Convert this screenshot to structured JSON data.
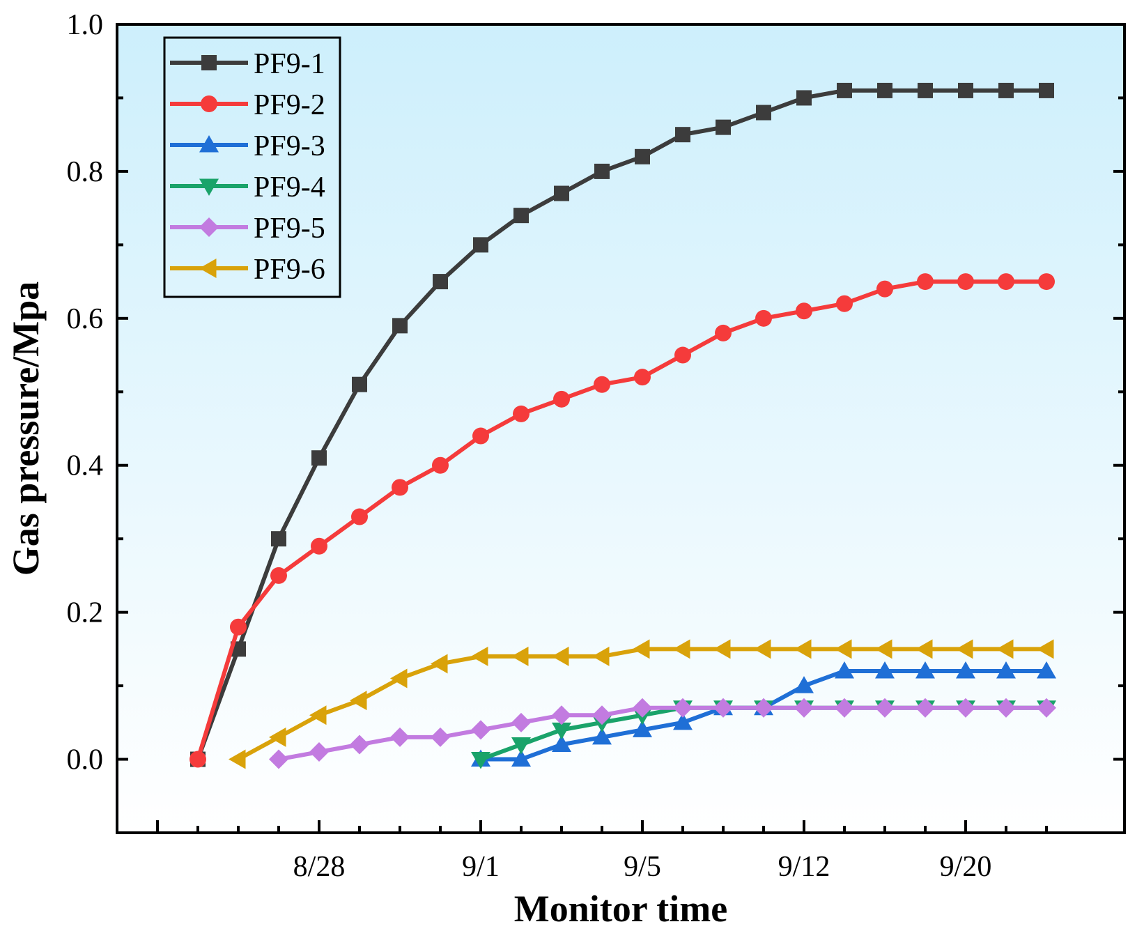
{
  "chart_data": {
    "type": "line",
    "title": "",
    "xlabel": "Monitor time",
    "ylabel": "Gas pressure/Mpa",
    "ylim": [
      -0.1,
      1.0
    ],
    "yticks": [
      "0.0",
      "0.2",
      "0.4",
      "0.6",
      "0.8",
      "1.0"
    ],
    "xticks": [
      "8/28",
      "9/1",
      "9/5",
      "9/12",
      "9/20"
    ],
    "grid": false,
    "legend_position": "top-left",
    "background": {
      "top": "#cdeffc",
      "bottom": "#ffffff"
    },
    "series": [
      {
        "name": "PF9-1",
        "color": "#3c3c3c",
        "marker": "square",
        "x": [
          0,
          1,
          2,
          3,
          4,
          5,
          6,
          7,
          8,
          9,
          10,
          11,
          12,
          13,
          14,
          15,
          16,
          17,
          18,
          19,
          20,
          21
        ],
        "y": [
          0.0,
          0.15,
          0.3,
          0.41,
          0.51,
          0.59,
          0.65,
          0.7,
          0.74,
          0.77,
          0.8,
          0.82,
          0.85,
          0.86,
          0.88,
          0.9,
          0.91,
          0.91,
          0.91,
          0.91,
          0.91,
          0.91
        ]
      },
      {
        "name": "PF9-2",
        "color": "#f53b3b",
        "marker": "circle",
        "x": [
          0,
          1,
          2,
          3,
          4,
          5,
          6,
          7,
          8,
          9,
          10,
          11,
          12,
          13,
          14,
          15,
          16,
          17,
          18,
          19,
          20,
          21
        ],
        "y": [
          0.0,
          0.18,
          0.25,
          0.29,
          0.33,
          0.37,
          0.4,
          0.44,
          0.47,
          0.49,
          0.51,
          0.52,
          0.55,
          0.58,
          0.6,
          0.61,
          0.62,
          0.64,
          0.65,
          0.65,
          0.65,
          0.65
        ]
      },
      {
        "name": "PF9-3",
        "color": "#1f6fd6",
        "marker": "triangle-up",
        "x": [
          7,
          8,
          9,
          10,
          11,
          12,
          13,
          14,
          15,
          16,
          17,
          18,
          19,
          20,
          21
        ],
        "y": [
          0.0,
          0.0,
          0.02,
          0.03,
          0.04,
          0.05,
          0.07,
          0.07,
          0.1,
          0.12,
          0.12,
          0.12,
          0.12,
          0.12,
          0.12
        ]
      },
      {
        "name": "PF9-4",
        "color": "#1aa36a",
        "marker": "triangle-down",
        "x": [
          7,
          8,
          9,
          10,
          11,
          12,
          13,
          14,
          15,
          16,
          17,
          18,
          19,
          20,
          21
        ],
        "y": [
          0.0,
          0.02,
          0.04,
          0.05,
          0.06,
          0.07,
          0.07,
          0.07,
          0.07,
          0.07,
          0.07,
          0.07,
          0.07,
          0.07,
          0.07
        ]
      },
      {
        "name": "PF9-5",
        "color": "#c27be0",
        "marker": "diamond",
        "x": [
          2,
          3,
          4,
          5,
          6,
          7,
          8,
          9,
          10,
          11,
          12,
          13,
          14,
          15,
          16,
          17,
          18,
          19,
          20,
          21
        ],
        "y": [
          0.0,
          0.01,
          0.02,
          0.03,
          0.03,
          0.04,
          0.05,
          0.06,
          0.06,
          0.07,
          0.07,
          0.07,
          0.07,
          0.07,
          0.07,
          0.07,
          0.07,
          0.07,
          0.07,
          0.07
        ]
      },
      {
        "name": "PF9-6",
        "color": "#d9a20a",
        "marker": "triangle-left",
        "x": [
          1,
          2,
          3,
          4,
          5,
          6,
          7,
          8,
          9,
          10,
          11,
          12,
          13,
          14,
          15,
          16,
          17,
          18,
          19,
          20,
          21
        ],
        "y": [
          0.0,
          0.03,
          0.06,
          0.08,
          0.11,
          0.13,
          0.14,
          0.14,
          0.14,
          0.14,
          0.15,
          0.15,
          0.15,
          0.15,
          0.15,
          0.15,
          0.15,
          0.15,
          0.15,
          0.15,
          0.15
        ]
      }
    ]
  }
}
